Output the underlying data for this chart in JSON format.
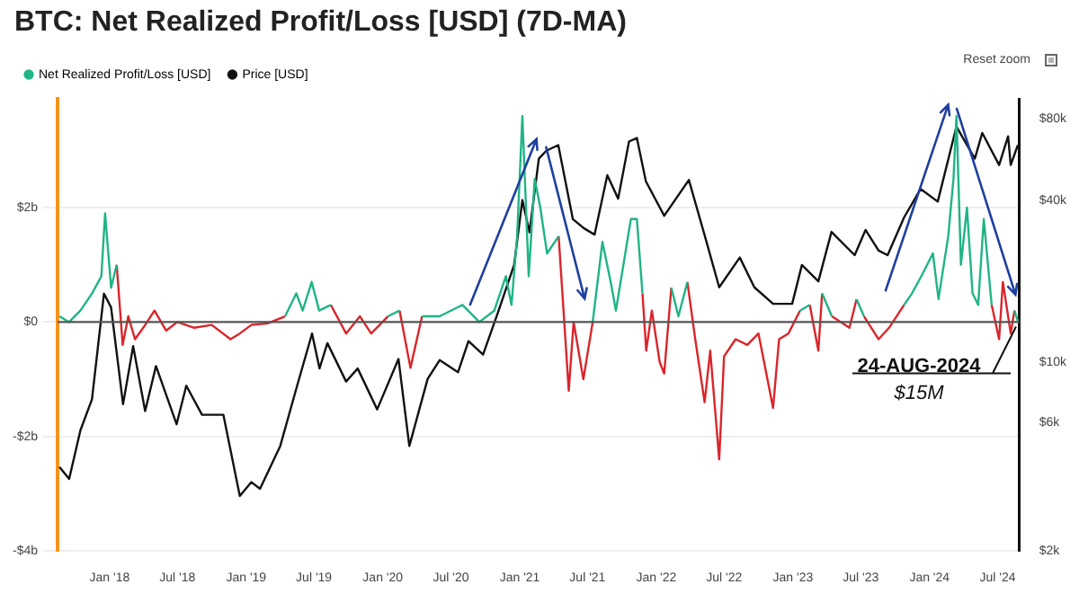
{
  "chart_data": {
    "type": "line",
    "title": "BTC: Net Realized Profit/Loss [USD] (7D-MA)",
    "legend": "top left",
    "grid": "y",
    "marker": "none",
    "line_style": "solid",
    "log": "y2",
    "xlim": [
      "2017-08-15",
      "2024-08-28"
    ],
    "xticks": [
      {
        "value": "2018-01-01",
        "label": "Jan '18"
      },
      {
        "value": "2018-07-01",
        "label": "Jul '18"
      },
      {
        "value": "2019-01-01",
        "label": "Jan '19"
      },
      {
        "value": "2019-07-01",
        "label": "Jul '19"
      },
      {
        "value": "2020-01-01",
        "label": "Jan '20"
      },
      {
        "value": "2020-07-01",
        "label": "Jul '20"
      },
      {
        "value": "2021-01-01",
        "label": "Jan '21"
      },
      {
        "value": "2021-07-01",
        "label": "Jul '21"
      },
      {
        "value": "2022-01-01",
        "label": "Jan '22"
      },
      {
        "value": "2022-07-01",
        "label": "Jul '22"
      },
      {
        "value": "2023-01-01",
        "label": "Jan '23"
      },
      {
        "value": "2023-07-01",
        "label": "Jul '23"
      },
      {
        "value": "2024-01-01",
        "label": "Jan '24"
      },
      {
        "value": "2024-07-01",
        "label": "Jul '24"
      }
    ],
    "ylim": [
      -4,
      3.9
    ],
    "yticks": [
      {
        "value": -4,
        "label": "-$4b"
      },
      {
        "value": -2,
        "label": "-$2b"
      },
      {
        "value": 0,
        "label": "$0"
      },
      {
        "value": 2,
        "label": "$2b"
      }
    ],
    "y2lim": [
      2000,
      95000
    ],
    "y2ticks": [
      {
        "value": 2000,
        "label": "$2k"
      },
      {
        "value": 6000,
        "label": "$6k"
      },
      {
        "value": 10000,
        "label": "$10k"
      },
      {
        "value": 40000,
        "label": "$40k"
      },
      {
        "value": 80000,
        "label": "$80k"
      }
    ],
    "ref_lines": [
      {
        "axis": "y",
        "value": 0,
        "color": "#555555"
      }
    ],
    "annotations": [
      "Reset zoom",
      {
        "text": "24-AUG-2024",
        "x": "2024-08-24",
        "y": 0.015
      },
      "$15M"
    ],
    "series": [
      {
        "name": "Net Realized Profit/Loss [USD]",
        "color": "#20b486",
        "x": [
          "2017-08-20",
          "2017-09-15",
          "2017-10-15",
          "2017-11-15",
          "2017-12-10",
          "2017-12-20",
          "2018-01-05",
          "2018-01-20",
          "2018-02-05",
          "2018-02-20",
          "2018-03-10",
          "2018-04-01",
          "2018-05-01",
          "2018-06-01",
          "2018-07-01",
          "2018-08-15",
          "2018-10-01",
          "2018-11-20",
          "2018-12-15",
          "2019-01-15",
          "2019-03-01",
          "2019-04-15",
          "2019-05-15",
          "2019-06-01",
          "2019-06-25",
          "2019-07-15",
          "2019-08-15",
          "2019-09-25",
          "2019-11-01",
          "2019-12-01",
          "2020-01-15",
          "2020-02-15",
          "2020-03-15",
          "2020-04-15",
          "2020-06-01",
          "2020-08-01",
          "2020-09-15",
          "2020-10-25",
          "2020-11-25",
          "2020-12-10",
          "2020-12-25",
          "2021-01-08",
          "2021-01-25",
          "2021-02-10",
          "2021-02-25",
          "2021-03-15",
          "2021-04-15",
          "2021-05-12",
          "2021-05-25",
          "2021-06-20",
          "2021-07-15",
          "2021-08-10",
          "2021-09-01",
          "2021-09-15",
          "2021-10-10",
          "2021-10-25",
          "2021-11-10",
          "2021-11-25",
          "2021-12-05",
          "2021-12-20",
          "2022-01-10",
          "2022-01-22",
          "2022-02-10",
          "2022-03-01",
          "2022-03-25",
          "2022-04-15",
          "2022-05-10",
          "2022-05-25",
          "2022-06-18",
          "2022-07-01",
          "2022-08-01",
          "2022-09-01",
          "2022-10-01",
          "2022-11-09",
          "2022-11-25",
          "2022-12-20",
          "2023-01-20",
          "2023-02-15",
          "2023-03-10",
          "2023-03-20",
          "2023-04-15",
          "2023-06-01",
          "2023-06-20",
          "2023-07-10",
          "2023-08-18",
          "2023-09-15",
          "2023-10-25",
          "2023-11-15",
          "2023-12-10",
          "2024-01-10",
          "2024-01-25",
          "2024-02-20",
          "2024-03-05",
          "2024-03-13",
          "2024-03-25",
          "2024-04-10",
          "2024-04-25",
          "2024-05-10",
          "2024-05-25",
          "2024-06-15",
          "2024-07-05",
          "2024-07-15",
          "2024-08-05",
          "2024-08-15",
          "2024-08-24"
        ],
        "values": [
          0.1,
          0.0,
          0.2,
          0.5,
          0.8,
          1.9,
          0.6,
          1.0,
          null,
          null,
          null,
          null,
          null,
          null,
          null,
          null,
          null,
          null,
          null,
          null,
          null,
          0.1,
          0.5,
          0.2,
          0.7,
          0.2,
          0.3,
          null,
          null,
          null,
          0.1,
          0.2,
          null,
          0.1,
          0.1,
          0.3,
          0.0,
          0.2,
          0.8,
          0.3,
          1.5,
          3.6,
          0.8,
          2.5,
          2.0,
          1.2,
          1.5,
          null,
          null,
          null,
          0.0,
          1.4,
          0.7,
          0.2,
          1.2,
          1.8,
          1.8,
          0.5,
          null,
          null,
          null,
          null,
          0.6,
          0.1,
          0.7,
          null,
          null,
          null,
          null,
          null,
          null,
          null,
          null,
          null,
          null,
          null,
          0.2,
          0.3,
          null,
          0.5,
          0.1,
          null,
          0.4,
          0.1,
          null,
          null,
          0.3,
          0.5,
          0.8,
          1.2,
          0.4,
          1.5,
          2.5,
          3.6,
          1.0,
          2.0,
          0.5,
          0.3,
          1.8,
          0.3,
          null,
          null,
          null,
          0.2,
          0.015
        ]
      },
      {
        "color": "#d9262b",
        "x": [
          "2018-01-20",
          "2018-02-05",
          "2018-02-20",
          "2018-03-10",
          "2018-04-01",
          "2018-05-01",
          "2018-06-01",
          "2018-07-01",
          "2018-08-15",
          "2018-10-01",
          "2018-11-20",
          "2018-12-15",
          "2019-01-15",
          "2019-03-01",
          "2019-04-15"
        ],
        "values": [
          1.0,
          -0.4,
          0.1,
          -0.3,
          -0.1,
          0.2,
          -0.15,
          0.0,
          -0.1,
          -0.05,
          -0.3,
          -0.2,
          -0.05,
          -0.02,
          0.1
        ]
      },
      {
        "color": "#d9262b",
        "x": [
          "2019-08-15",
          "2019-09-25",
          "2019-11-01",
          "2019-12-01",
          "2020-01-15"
        ],
        "values": [
          0.3,
          -0.2,
          0.1,
          -0.2,
          0.1
        ]
      },
      {
        "color": "#d9262b",
        "x": [
          "2020-02-15",
          "2020-03-15",
          "2020-04-15"
        ],
        "values": [
          0.2,
          -0.8,
          0.1
        ]
      },
      {
        "color": "#d9262b",
        "x": [
          "2021-04-15",
          "2021-05-12",
          "2021-05-25",
          "2021-06-20",
          "2021-07-15"
        ],
        "values": [
          1.5,
          -1.2,
          0.0,
          -1.0,
          0.0
        ]
      },
      {
        "color": "#d9262b",
        "x": [
          "2021-11-25",
          "2021-12-05",
          "2021-12-20",
          "2022-01-10",
          "2022-01-22",
          "2022-02-10"
        ],
        "values": [
          0.5,
          -0.5,
          0.2,
          -0.7,
          -0.9,
          0.6
        ]
      },
      {
        "color": "#d9262b",
        "x": [
          "2022-03-25",
          "2022-04-15",
          "2022-05-10",
          "2022-05-25",
          "2022-06-18",
          "2022-07-01",
          "2022-08-01",
          "2022-09-01",
          "2022-10-01",
          "2022-11-09",
          "2022-11-25",
          "2022-12-20",
          "2023-01-20"
        ],
        "values": [
          0.7,
          -0.3,
          -1.4,
          -0.5,
          -2.4,
          -0.6,
          -0.3,
          -0.4,
          -0.2,
          -1.5,
          -0.3,
          -0.2,
          0.2
        ]
      },
      {
        "color": "#d9262b",
        "x": [
          "2023-02-15",
          "2023-03-10",
          "2023-03-20"
        ],
        "values": [
          0.3,
          -0.5,
          0.5
        ]
      },
      {
        "color": "#d9262b",
        "x": [
          "2023-04-15",
          "2023-06-01",
          "2023-06-20"
        ],
        "values": [
          0.1,
          -0.1,
          0.4
        ]
      },
      {
        "color": "#d9262b",
        "x": [
          "2023-07-10",
          "2023-08-18",
          "2023-09-15",
          "2023-10-25"
        ],
        "values": [
          0.1,
          -0.3,
          -0.1,
          0.3
        ]
      },
      {
        "color": "#d9262b",
        "x": [
          "2024-06-15",
          "2024-07-05",
          "2024-07-15",
          "2024-08-05",
          "2024-08-15"
        ],
        "values": [
          0.3,
          -0.3,
          0.7,
          -0.2,
          0.2
        ]
      },
      {
        "name": "Price [USD]",
        "color": "#111111",
        "axis": "y2",
        "x": [
          "2017-08-20",
          "2017-09-15",
          "2017-10-15",
          "2017-11-15",
          "2017-12-17",
          "2018-01-05",
          "2018-02-06",
          "2018-03-05",
          "2018-04-06",
          "2018-05-05",
          "2018-06-29",
          "2018-07-25",
          "2018-09-05",
          "2018-11-01",
          "2018-12-15",
          "2019-01-15",
          "2019-02-07",
          "2019-04-02",
          "2019-05-15",
          "2019-06-26",
          "2019-07-16",
          "2019-08-06",
          "2019-09-25",
          "2019-10-26",
          "2019-12-17",
          "2020-02-12",
          "2020-03-12",
          "2020-04-30",
          "2020-06-01",
          "2020-07-20",
          "2020-08-17",
          "2020-09-25",
          "2020-11-05",
          "2020-12-17",
          "2021-01-08",
          "2021-01-27",
          "2021-02-21",
          "2021-03-13",
          "2021-04-14",
          "2021-05-23",
          "2021-06-21",
          "2021-07-20",
          "2021-08-23",
          "2021-09-21",
          "2021-10-20",
          "2021-11-10",
          "2021-12-04",
          "2022-01-22",
          "2022-03-29",
          "2022-05-12",
          "2022-06-18",
          "2022-08-12",
          "2022-09-20",
          "2022-11-09",
          "2022-12-30",
          "2023-01-25",
          "2023-03-10",
          "2023-04-14",
          "2023-06-15",
          "2023-07-14",
          "2023-08-18",
          "2023-09-11",
          "2023-10-25",
          "2023-12-08",
          "2024-01-23",
          "2024-03-13",
          "2024-05-01",
          "2024-05-21",
          "2024-07-05",
          "2024-07-29",
          "2024-08-05",
          "2024-08-24"
        ],
        "values": [
          4100,
          3700,
          5600,
          7300,
          18000,
          16000,
          7000,
          11500,
          6600,
          9700,
          5900,
          8200,
          6400,
          6400,
          3200,
          3600,
          3400,
          4900,
          8000,
          12800,
          9500,
          11800,
          8500,
          9500,
          6700,
          10300,
          4900,
          8700,
          10200,
          9200,
          12000,
          10700,
          15500,
          23000,
          40000,
          30400,
          57000,
          61000,
          64000,
          34000,
          31500,
          29800,
          49500,
          40500,
          66000,
          68000,
          47000,
          35000,
          47500,
          29000,
          19000,
          24500,
          19000,
          16500,
          16500,
          23000,
          20000,
          30500,
          25000,
          31000,
          26000,
          25000,
          34500,
          44000,
          39500,
          75000,
          57000,
          71000,
          54000,
          69000,
          54000,
          64000
        ]
      }
    ]
  }
}
